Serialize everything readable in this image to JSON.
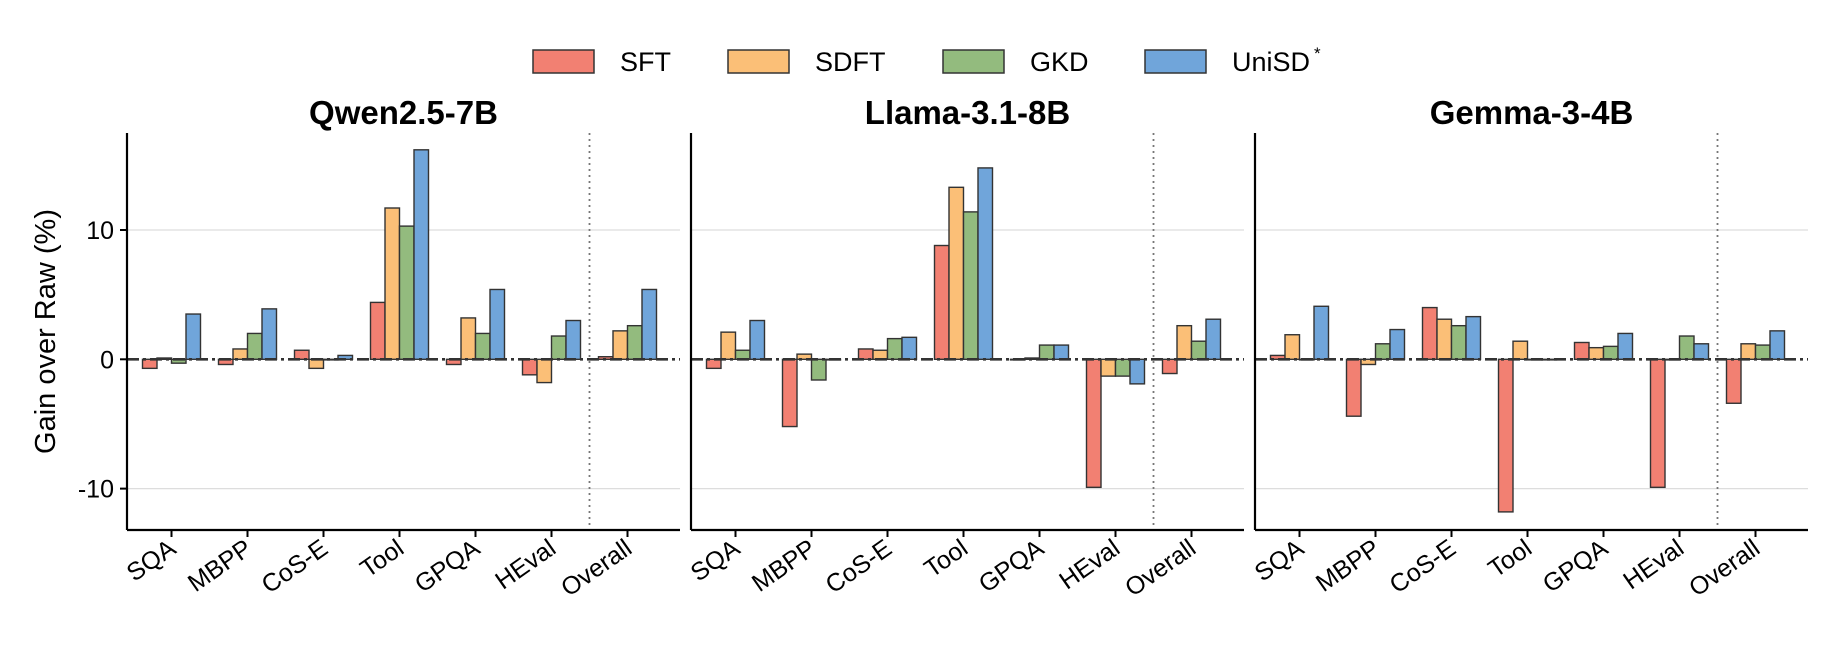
{
  "chart_data": {
    "type": "bar",
    "ylabel": "Gain over Raw (%)",
    "ylim": [
      -13.2,
      17.5
    ],
    "yticks": [
      "-10",
      "0",
      "10"
    ],
    "ytick_values": [
      -10,
      0,
      10
    ],
    "grid": "horizontal",
    "legend_position": "top-center",
    "categories": [
      "SQA",
      "MBPP",
      "CoS-E",
      "Tool",
      "GPQA",
      "HEval",
      "Overall"
    ],
    "legend": [
      {
        "name": "SFT",
        "color": "#f28072"
      },
      {
        "name": "SDFT",
        "color": "#fbbf77"
      },
      {
        "name": "GKD",
        "color": "#93bb7e"
      },
      {
        "name": "UniSD",
        "sup": "*",
        "color": "#70a5da"
      }
    ],
    "panels": [
      {
        "title": "Qwen2.5-7B",
        "series": [
          {
            "name": "SFT",
            "values": [
              -0.7,
              -0.4,
              0.7,
              4.4,
              -0.4,
              -1.2,
              0.2
            ]
          },
          {
            "name": "SDFT",
            "values": [
              0.1,
              0.8,
              -0.7,
              11.7,
              3.2,
              -1.8,
              2.2
            ]
          },
          {
            "name": "GKD",
            "values": [
              -0.3,
              2.0,
              0.0,
              10.3,
              2.0,
              1.8,
              2.6
            ]
          },
          {
            "name": "UniSD",
            "values": [
              3.5,
              3.9,
              0.3,
              16.2,
              5.4,
              3.0,
              5.4
            ]
          }
        ]
      },
      {
        "title": "Llama-3.1-8B",
        "series": [
          {
            "name": "SFT",
            "values": [
              -0.7,
              -5.2,
              0.8,
              8.8,
              0.0,
              -9.9,
              -1.1
            ]
          },
          {
            "name": "SDFT",
            "values": [
              2.1,
              0.4,
              0.7,
              13.3,
              0.1,
              -1.3,
              2.6
            ]
          },
          {
            "name": "GKD",
            "values": [
              0.7,
              -1.6,
              1.6,
              11.4,
              1.1,
              -1.3,
              1.4
            ]
          },
          {
            "name": "UniSD",
            "values": [
              3.0,
              0.0,
              1.7,
              14.8,
              1.1,
              -1.9,
              3.1
            ]
          }
        ]
      },
      {
        "title": "Gemma-3-4B",
        "series": [
          {
            "name": "SFT",
            "values": [
              0.3,
              -4.4,
              4.0,
              -11.8,
              1.3,
              -9.9,
              -3.4
            ]
          },
          {
            "name": "SDFT",
            "values": [
              1.9,
              -0.4,
              3.1,
              1.4,
              0.9,
              0.0,
              1.2
            ]
          },
          {
            "name": "GKD",
            "values": [
              0.0,
              1.2,
              2.6,
              0.0,
              1.0,
              1.8,
              1.1
            ]
          },
          {
            "name": "UniSD",
            "values": [
              4.1,
              2.3,
              3.3,
              0.0,
              2.0,
              1.2,
              2.2
            ]
          }
        ]
      }
    ]
  }
}
